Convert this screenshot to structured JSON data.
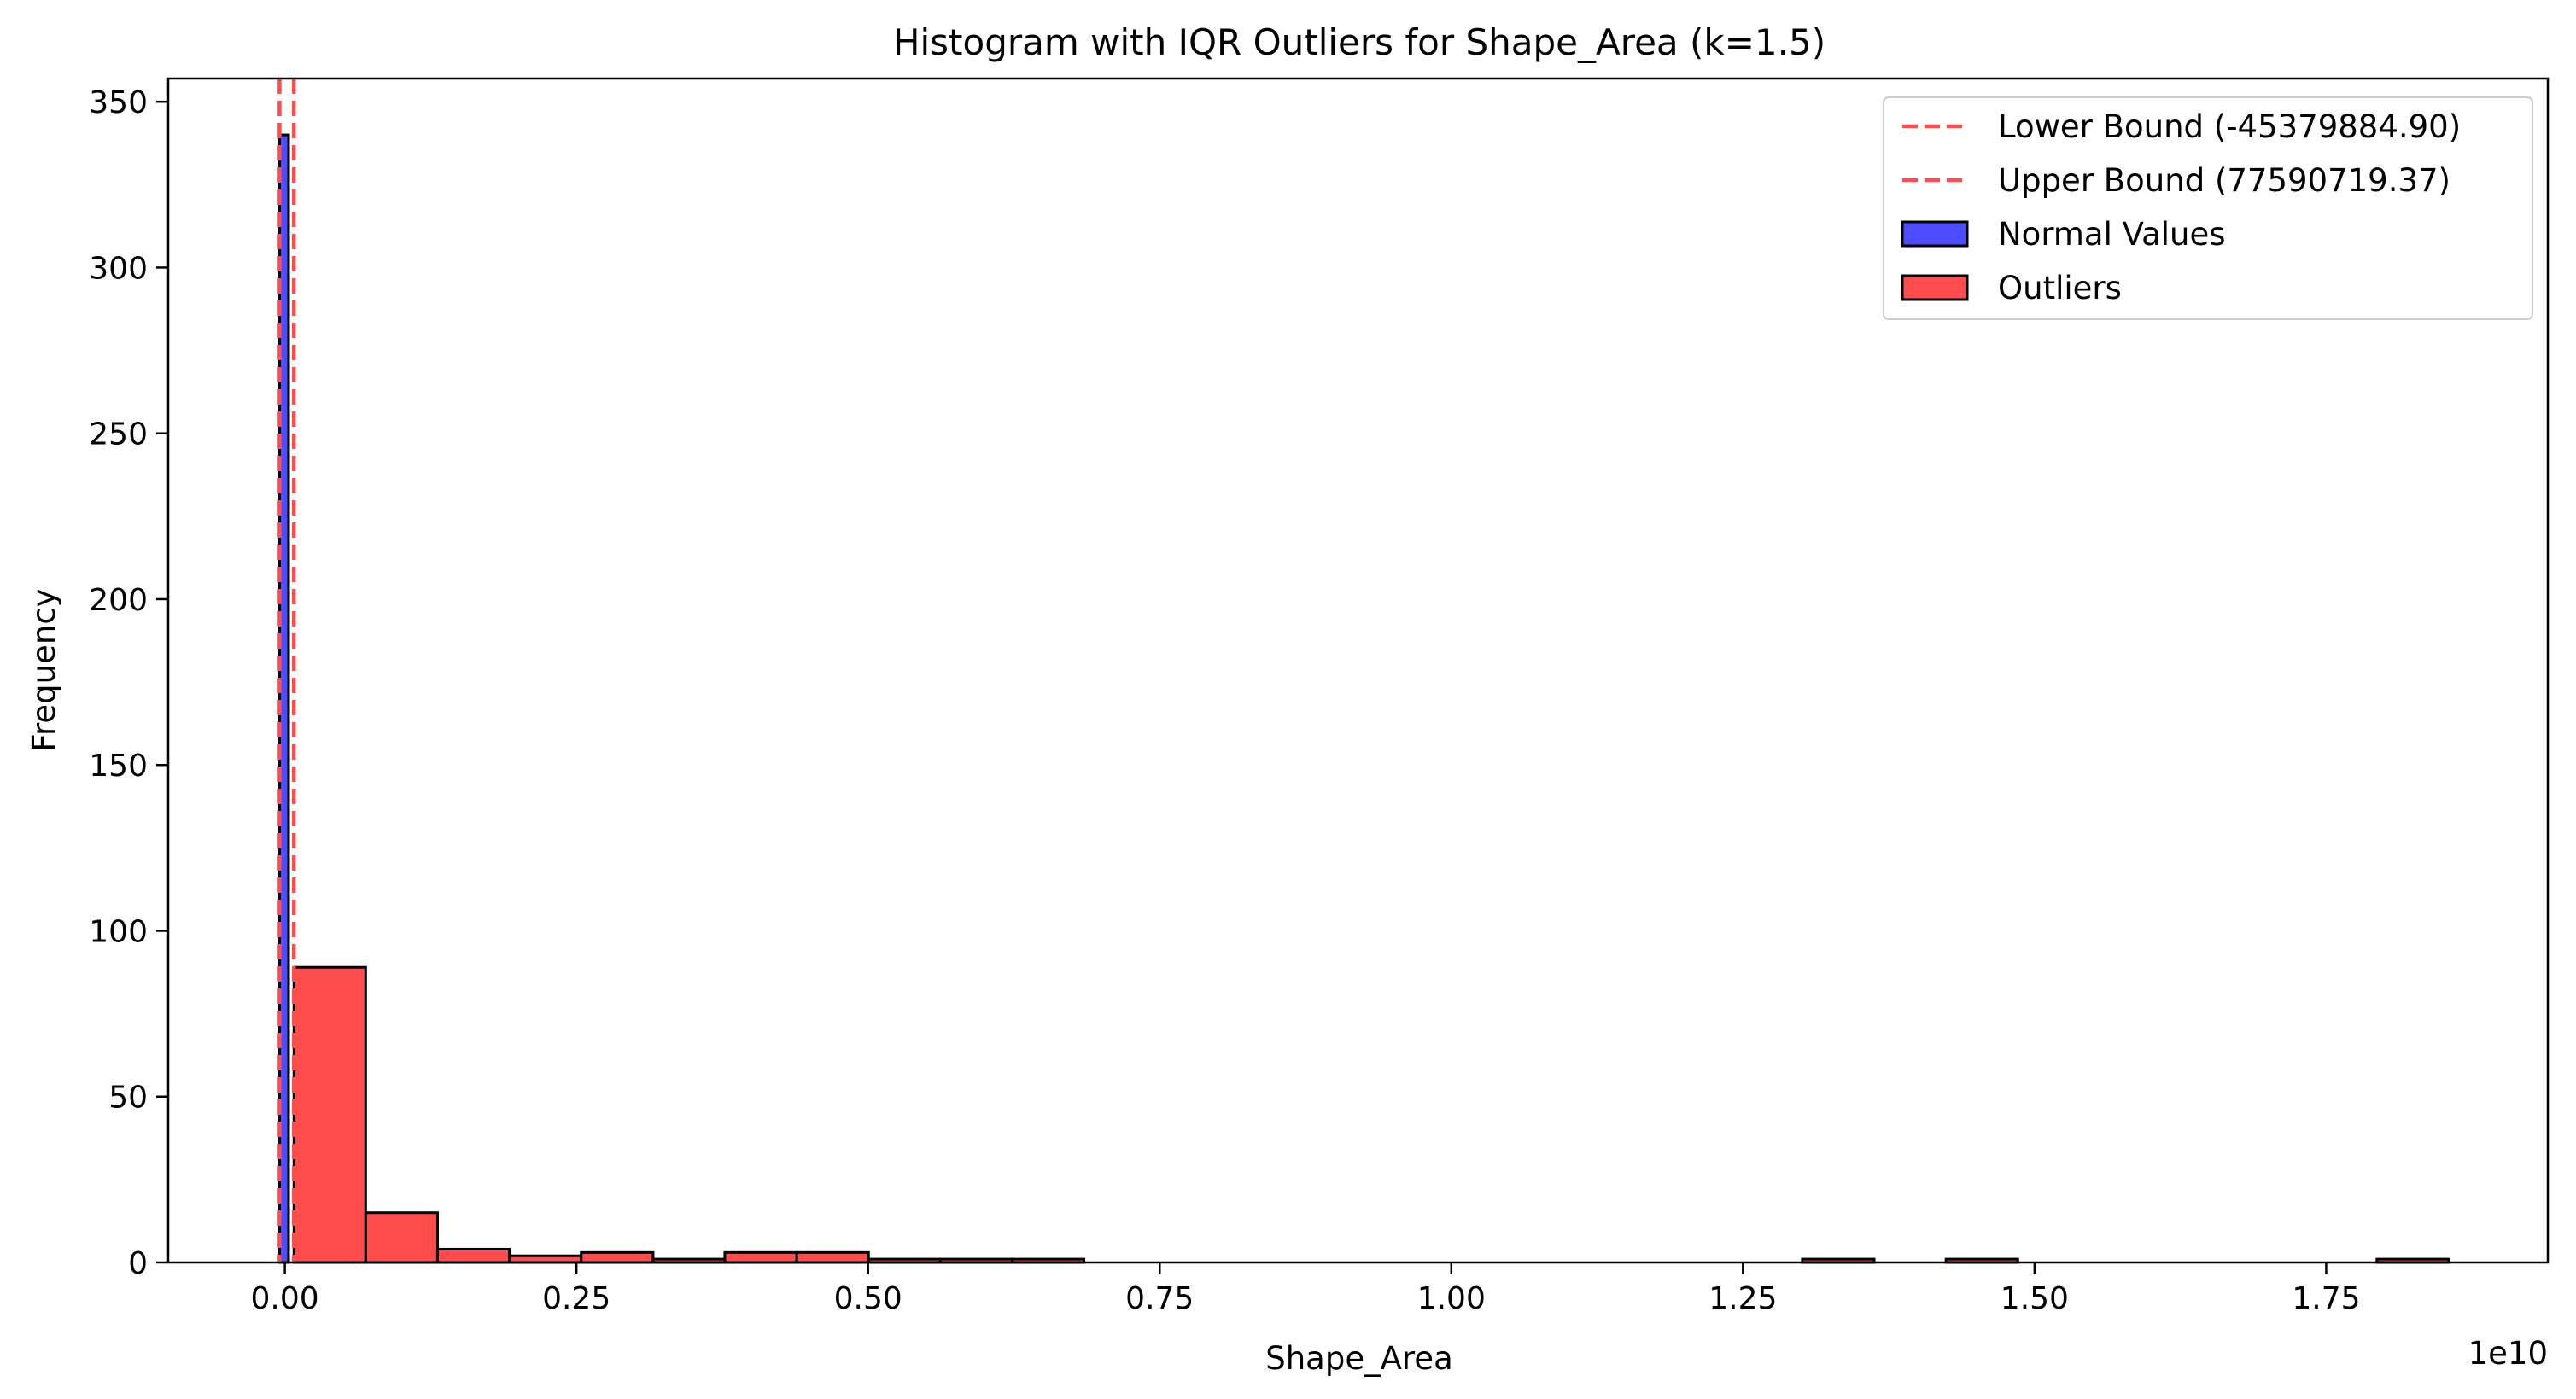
{
  "chart_data": {
    "type": "bar",
    "title": "Histogram with IQR Outliers for Shape_Area (k=1.5)",
    "xlabel": "Shape_Area",
    "ylabel": "Frequency",
    "x_offset_label": "1e10",
    "xlim": [
      -0.1,
      1.94
    ],
    "ylim": [
      0,
      357
    ],
    "x_ticks": [
      {
        "value": 0.0,
        "label": "0.00"
      },
      {
        "value": 0.25,
        "label": "0.25"
      },
      {
        "value": 0.5,
        "label": "0.50"
      },
      {
        "value": 0.75,
        "label": "0.75"
      },
      {
        "value": 1.0,
        "label": "1.00"
      },
      {
        "value": 1.25,
        "label": "1.25"
      },
      {
        "value": 1.5,
        "label": "1.50"
      },
      {
        "value": 1.75,
        "label": "1.75"
      }
    ],
    "y_ticks": [
      {
        "value": 0,
        "label": "0"
      },
      {
        "value": 50,
        "label": "50"
      },
      {
        "value": 100,
        "label": "100"
      },
      {
        "value": 150,
        "label": "150"
      },
      {
        "value": 200,
        "label": "200"
      },
      {
        "value": 250,
        "label": "250"
      },
      {
        "value": 300,
        "label": "300"
      },
      {
        "value": 350,
        "label": "350"
      }
    ],
    "series": [
      {
        "name": "Normal Values",
        "color": "#4d4dff",
        "bins": [
          {
            "x0": -0.0045,
            "x1": 0.0032,
            "value": 340
          }
        ]
      },
      {
        "name": "Outliers",
        "color": "#ff4d4d",
        "bins": [
          {
            "x0": 0.0078,
            "x1": 0.0693,
            "value": 89
          },
          {
            "x0": 0.0693,
            "x1": 0.1309,
            "value": 15
          },
          {
            "x0": 0.1309,
            "x1": 0.1925,
            "value": 4
          },
          {
            "x0": 0.1925,
            "x1": 0.2541,
            "value": 2
          },
          {
            "x0": 0.2541,
            "x1": 0.3157,
            "value": 3
          },
          {
            "x0": 0.3157,
            "x1": 0.3772,
            "value": 1
          },
          {
            "x0": 0.3772,
            "x1": 0.4388,
            "value": 3
          },
          {
            "x0": 0.4388,
            "x1": 0.5004,
            "value": 3
          },
          {
            "x0": 0.5004,
            "x1": 0.562,
            "value": 1
          },
          {
            "x0": 0.562,
            "x1": 0.6236,
            "value": 1
          },
          {
            "x0": 0.6236,
            "x1": 0.6851,
            "value": 1
          },
          {
            "x0": 1.3009,
            "x1": 1.3625,
            "value": 1
          },
          {
            "x0": 1.4241,
            "x1": 1.4856,
            "value": 1
          },
          {
            "x0": 1.7935,
            "x1": 1.8551,
            "value": 1
          }
        ]
      }
    ],
    "reference_lines": [
      {
        "name": "Lower Bound (-45379884.90)",
        "x": -0.0045379885,
        "color": "#ff4d4d",
        "style": "dashed"
      },
      {
        "name": "Upper Bound (77590719.37)",
        "x": 0.0077590719,
        "color": "#ff4d4d",
        "style": "dashed"
      }
    ],
    "legend": {
      "position": "top-right",
      "entries": [
        {
          "label": "Lower Bound (-45379884.90)",
          "kind": "line",
          "color": "#ff4d4d"
        },
        {
          "label": "Upper Bound (77590719.37)",
          "kind": "line",
          "color": "#ff4d4d"
        },
        {
          "label": "Normal Values",
          "kind": "patch",
          "color": "#4d4dff"
        },
        {
          "label": "Outliers",
          "kind": "patch",
          "color": "#ff4d4d"
        }
      ]
    },
    "grid": false
  }
}
